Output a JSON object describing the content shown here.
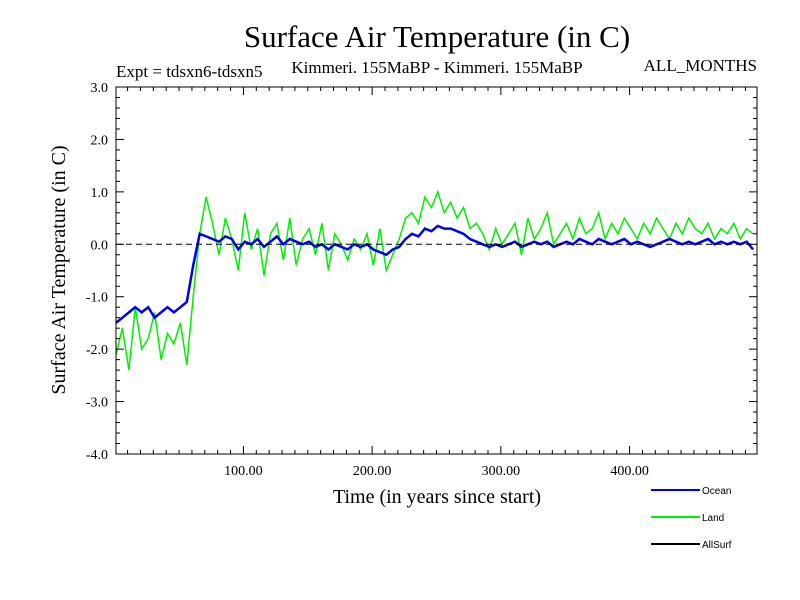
{
  "chart_data": {
    "type": "line",
    "title": "Surface Air Temperature (in C)",
    "subtitle_left": "Expt = tdsxn6-tdsxn5",
    "subtitle_center": "Kimmeri. 155MaBP - Kimmeri. 155MaBP",
    "subtitle_right": "ALL_MONTHS",
    "xlabel": "Time (in years since start)",
    "ylabel": "Surface Air Temperature (in C)",
    "xlim": [
      1,
      499
    ],
    "ylim": [
      -4.0,
      3.0
    ],
    "xticks": [
      100,
      200,
      300,
      400
    ],
    "xtick_labels": [
      "100.00",
      "200.00",
      "300.00",
      "400.00"
    ],
    "yticks": [
      -4.0,
      -3.0,
      -2.0,
      -1.0,
      0.0,
      1.0,
      2.0,
      3.0
    ],
    "ytick_labels": [
      "-4.0",
      "-3.0",
      "-2.0",
      "-1.0",
      "0.0",
      "1.0",
      "2.0",
      "3.0"
    ],
    "reference_line": 0.0,
    "series_colors": {
      "Ocean": "#0000ee",
      "Land": "#00ee00",
      "AllSurf": "#000000"
    },
    "legend": [
      "Ocean",
      "Land",
      "AllSurf"
    ],
    "legend_position": "bottom-right",
    "series": [
      {
        "name": "Land",
        "x_start": 1,
        "x_step": 5,
        "values": [
          -2.1,
          -1.6,
          -2.4,
          -1.2,
          -2.0,
          -1.8,
          -1.3,
          -2.2,
          -1.7,
          -1.9,
          -1.5,
          -2.3,
          -1.0,
          0.2,
          0.9,
          0.4,
          -0.2,
          0.5,
          0.1,
          -0.5,
          0.6,
          -0.1,
          0.3,
          -0.6,
          0.2,
          0.4,
          -0.3,
          0.5,
          -0.4,
          0.1,
          0.3,
          -0.2,
          0.4,
          -0.5,
          0.2,
          0.0,
          -0.3,
          0.1,
          -0.1,
          0.2,
          -0.4,
          0.3,
          -0.5,
          -0.2,
          0.1,
          0.5,
          0.6,
          0.4,
          0.9,
          0.7,
          1.0,
          0.6,
          0.8,
          0.5,
          0.7,
          0.3,
          0.4,
          0.2,
          -0.1,
          0.3,
          0.0,
          0.2,
          0.4,
          -0.2,
          0.5,
          0.1,
          0.3,
          0.6,
          0.0,
          0.2,
          0.4,
          0.1,
          0.5,
          0.2,
          0.3,
          0.6,
          0.1,
          0.4,
          0.2,
          0.5,
          0.3,
          0.1,
          0.4,
          0.2,
          0.5,
          0.3,
          0.1,
          0.4,
          0.2,
          0.5,
          0.3,
          0.2,
          0.4,
          0.1,
          0.3,
          0.2,
          0.4,
          0.1,
          0.3,
          0.2
        ]
      },
      {
        "name": "Ocean",
        "x_start": 1,
        "x_step": 5,
        "values": [
          -1.5,
          -1.4,
          -1.3,
          -1.2,
          -1.3,
          -1.2,
          -1.4,
          -1.3,
          -1.2,
          -1.3,
          -1.2,
          -1.1,
          -0.4,
          0.2,
          0.15,
          0.1,
          0.05,
          0.15,
          0.1,
          -0.1,
          0.05,
          0.0,
          0.1,
          -0.05,
          0.05,
          0.15,
          0.0,
          0.1,
          0.05,
          0.0,
          0.05,
          -0.05,
          0.0,
          -0.1,
          0.0,
          -0.05,
          -0.1,
          0.0,
          -0.05,
          0.0,
          -0.1,
          -0.15,
          -0.2,
          -0.1,
          -0.05,
          0.1,
          0.2,
          0.15,
          0.3,
          0.25,
          0.35,
          0.3,
          0.3,
          0.25,
          0.2,
          0.1,
          0.05,
          0.0,
          -0.05,
          0.0,
          -0.05,
          0.0,
          0.05,
          -0.05,
          0.0,
          0.05,
          0.0,
          0.05,
          -0.05,
          0.0,
          0.05,
          0.0,
          0.1,
          0.05,
          0.0,
          0.1,
          0.05,
          0.0,
          0.05,
          0.1,
          0.0,
          0.05,
          0.0,
          -0.05,
          0.0,
          0.05,
          0.1,
          0.05,
          0.0,
          0.05,
          0.0,
          0.05,
          0.1,
          0.0,
          0.05,
          0.0,
          0.05,
          0.0,
          0.05,
          -0.1
        ]
      },
      {
        "name": "AllSurf",
        "values": []
      }
    ]
  }
}
